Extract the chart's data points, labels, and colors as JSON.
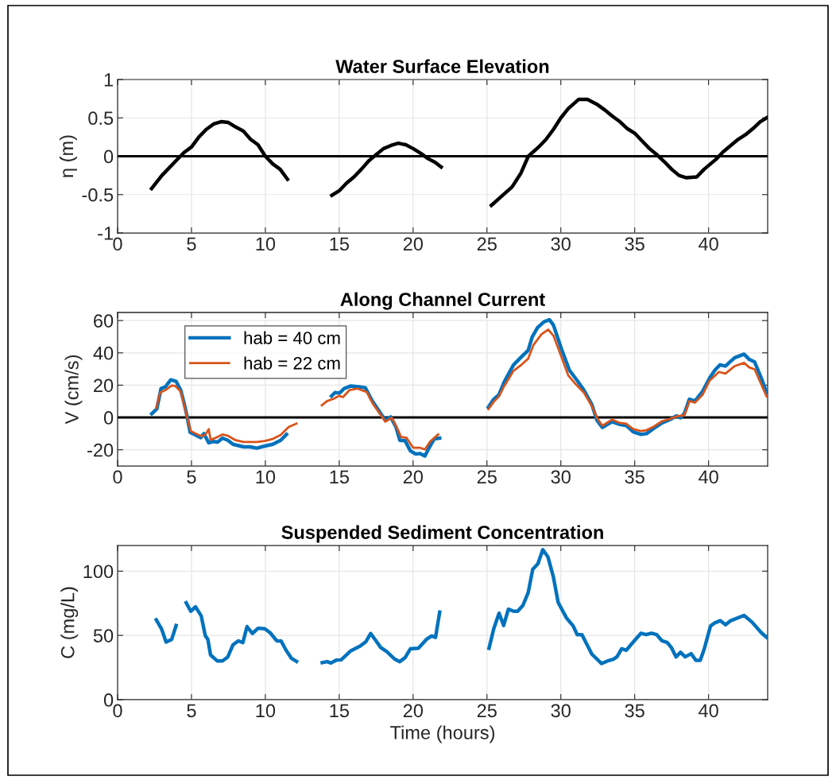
{
  "chart_data": [
    {
      "type": "line",
      "title": "Water Surface Elevation",
      "ylabel": "η (m)",
      "xlim": [
        0,
        44
      ],
      "xticks": [
        0,
        5,
        10,
        15,
        20,
        25,
        30,
        35,
        40
      ],
      "ylim": [
        -1,
        1
      ],
      "yticks": [
        -1,
        -0.5,
        0,
        0.5,
        1
      ],
      "grid": true,
      "legend": false,
      "ref_lines": [
        {
          "axis": "y",
          "value": 0,
          "color": "#000000"
        }
      ],
      "series": [
        {
          "color": "#000000",
          "x": [
            2.3,
            3,
            4,
            4.5,
            5,
            5.5,
            6,
            6.5,
            7,
            7.5,
            8,
            8.5,
            9,
            9.5,
            10,
            10.5,
            11,
            11.5,
            13,
            14.5,
            15,
            15.5,
            16,
            16.5,
            17,
            17.5,
            18,
            18.5,
            19,
            19.5,
            20,
            20.5,
            21,
            21.5,
            21.9,
            23.5,
            25.3,
            26,
            26.7,
            27.3,
            27.8,
            28.5,
            29,
            29.5,
            30,
            30.5,
            31.2,
            31.8,
            32.5,
            33,
            33.5,
            34,
            34.5,
            35,
            35.5,
            36,
            36.5,
            37,
            37.5,
            38,
            38.5,
            39.2,
            39.7,
            40.5,
            41,
            41.5,
            42,
            42.5,
            43,
            43.5,
            44
          ],
          "values": [
            -0.42,
            -0.25,
            -0.05,
            0.05,
            0.12,
            0.25,
            0.35,
            0.42,
            0.45,
            0.44,
            0.38,
            0.33,
            0.22,
            0.15,
            0.0,
            -0.1,
            -0.17,
            -0.3,
            null,
            -0.51,
            -0.45,
            -0.35,
            -0.27,
            -0.17,
            -0.06,
            0.02,
            0.1,
            0.14,
            0.17,
            0.15,
            0.1,
            0.04,
            -0.03,
            -0.08,
            -0.14,
            null,
            -0.64,
            -0.52,
            -0.4,
            -0.22,
            0.0,
            0.12,
            0.22,
            0.35,
            0.5,
            0.62,
            0.74,
            0.74,
            0.67,
            0.6,
            0.52,
            0.45,
            0.36,
            0.3,
            0.2,
            0.1,
            0.02,
            -0.07,
            -0.17,
            -0.25,
            -0.28,
            -0.27,
            -0.17,
            -0.04,
            0.06,
            0.14,
            0.22,
            0.28,
            0.36,
            0.45,
            0.51
          ]
        }
      ]
    },
    {
      "type": "line",
      "title": "Along Channel Current",
      "ylabel": "V (cm/s)",
      "xlim": [
        0,
        44
      ],
      "xticks": [
        0,
        5,
        10,
        15,
        20,
        25,
        30,
        35,
        40
      ],
      "ylim": [
        -30,
        65
      ],
      "yticks": [
        -20,
        0,
        20,
        40,
        60
      ],
      "grid": true,
      "legend": "top left",
      "ref_lines": [
        {
          "axis": "y",
          "value": 0,
          "color": "#000000"
        }
      ],
      "series": [
        {
          "name": "hab = 40 cm",
          "color": "#0072bd",
          "x": [
            2.31,
            2.65,
            2.94,
            3.24,
            3.6,
            3.96,
            4.27,
            4.5,
            4.68,
            4.91,
            5.27,
            5.63,
            5.84,
            6.17,
            6.47,
            6.77,
            7.1,
            7.46,
            7.81,
            8.53,
            8.98,
            9.42,
            9.96,
            10.5,
            11.04,
            11.43,
            13,
            14.48,
            14.71,
            15.02,
            15.34,
            15.79,
            16.33,
            16.77,
            17.22,
            17.67,
            18.12,
            18.48,
            18.84,
            19.1,
            19.46,
            19.82,
            20.18,
            20.45,
            20.8,
            21.07,
            21.43,
            21.8,
            23.5,
            25.1,
            25.46,
            25.81,
            26.17,
            26.8,
            27.33,
            27.79,
            28.06,
            28.42,
            28.87,
            29.23,
            29.5,
            30.04,
            30.58,
            31.11,
            31.56,
            32.1,
            32.45,
            32.81,
            33.47,
            34,
            34.44,
            34.9,
            35.43,
            35.8,
            36.3,
            36.85,
            37.38,
            37.83,
            38.1,
            38.37,
            38.7,
            39.08,
            39.6,
            40.07,
            40.43,
            40.78,
            41.14,
            41.77,
            42.4,
            42.76,
            43.12,
            43.57,
            43.93
          ],
          "values": [
            2.3,
            5.2,
            17.9,
            19,
            23.3,
            22.3,
            17,
            8.9,
            1.5,
            -9.2,
            -10.8,
            -12.5,
            -10,
            -15.7,
            -14.9,
            -15.2,
            -12.8,
            -14.1,
            -16.6,
            -18.2,
            -18.2,
            -19,
            -17.7,
            -16.6,
            -14.1,
            -10.5,
            null,
            13.3,
            15.4,
            15.1,
            17.9,
            19.5,
            19,
            18.4,
            10.5,
            4.3,
            -1.8,
            0.3,
            -5.9,
            -14.1,
            -14.4,
            -20.7,
            -22.6,
            -22.3,
            -23.9,
            -19,
            -13.3,
            -12.8,
            null,
            6.4,
            11.3,
            14.1,
            22,
            32.6,
            37.5,
            41.6,
            49.8,
            55.6,
            59.3,
            60.5,
            57.2,
            42.5,
            29.3,
            22.8,
            17,
            8,
            -1.8,
            -6.2,
            -2.6,
            -4.3,
            -5.1,
            -8.9,
            -10.5,
            -10,
            -6.7,
            -3.4,
            -1.3,
            1,
            -0.2,
            2.6,
            11.3,
            10.2,
            16.2,
            24.4,
            29.3,
            32.6,
            31.8,
            37,
            39.2,
            35.9,
            34.3,
            24.4,
            15.4
          ]
        },
        {
          "name": "hab = 22 cm",
          "color": "#d95319",
          "x": [
            2.61,
            2.88,
            3.24,
            3.66,
            3.9,
            4.27,
            4.68,
            4.95,
            5.3,
            5.66,
            5.93,
            6.17,
            6.29,
            6.65,
            7.1,
            7.46,
            7.99,
            8.53,
            9.42,
            9.96,
            10.5,
            11.04,
            11.58,
            12.11,
            13,
            13.82,
            14.18,
            14.63,
            14.99,
            15.25,
            15.7,
            16.24,
            16.87,
            17.31,
            17.76,
            18.12,
            18.56,
            18.92,
            19.19,
            19.55,
            20,
            20.45,
            20.8,
            21.16,
            21.7,
            23.5,
            25.1,
            25.46,
            25.81,
            26.17,
            26.8,
            27.33,
            27.79,
            28.15,
            28.69,
            29.14,
            29.5,
            30.04,
            30.5,
            31.04,
            31.56,
            32.1,
            32.45,
            32.81,
            33.47,
            34,
            34.44,
            34.9,
            35.43,
            35.8,
            36.3,
            36.85,
            37.38,
            37.83,
            38.37,
            38.7,
            39.08,
            39.6,
            40.07,
            40.7,
            41.14,
            41.77,
            42.4,
            42.76,
            43.12,
            43.93
          ],
          "values": [
            5.9,
            15.4,
            17,
            19.8,
            19.5,
            16.2,
            1,
            -8.4,
            -10,
            -11.6,
            -10.8,
            -7.2,
            -13.8,
            -12.5,
            -10.5,
            -11.3,
            -14.1,
            -15.2,
            -15.2,
            -14.6,
            -13.3,
            -10.8,
            -5.9,
            -3.8,
            null,
            7.5,
            10.2,
            11.6,
            13.4,
            12.6,
            17,
            17.9,
            15.7,
            8,
            2.3,
            -2.6,
            -0.2,
            -6.7,
            -12.1,
            -12.5,
            -18.7,
            -18.7,
            -19.8,
            -14.9,
            -10.5,
            null,
            5.2,
            9.7,
            13,
            19.5,
            28.9,
            32.6,
            36.4,
            44.9,
            51.5,
            54.4,
            50.7,
            37.5,
            26.1,
            20.3,
            15.4,
            7.2,
            -0.2,
            -5.1,
            -1.3,
            -3.4,
            -3.9,
            -7.2,
            -8.4,
            -7.9,
            -5.6,
            -2.3,
            -1,
            0.7,
            1.5,
            10.2,
            9.2,
            14.1,
            22.8,
            28.2,
            27.2,
            31.8,
            33.8,
            31,
            29.8,
            13
          ]
        }
      ]
    },
    {
      "type": "line",
      "title": "Suspended Sediment Concentration",
      "ylabel": "C (mg/L)",
      "xlabel": "Time (hours)",
      "xlim": [
        0,
        44
      ],
      "xticks": [
        0,
        5,
        10,
        15,
        20,
        25,
        30,
        35,
        40
      ],
      "ylim": [
        0,
        120
      ],
      "yticks": [
        0,
        50,
        100
      ],
      "grid": true,
      "legend": false,
      "series": [
        {
          "color": "#0072bd",
          "x": [
            2.62,
            2.97,
            3.28,
            3.66,
            3.96,
            4.3,
            4.64,
            4.95,
            5.27,
            5.66,
            5.93,
            6.11,
            6.29,
            6.74,
            7.1,
            7.46,
            7.81,
            8.17,
            8.48,
            8.76,
            9.12,
            9.51,
            9.96,
            10.32,
            10.77,
            11.07,
            11.4,
            11.76,
            12.11,
            13,
            13.85,
            14.18,
            14.44,
            14.8,
            15.13,
            15.79,
            16.42,
            16.81,
            17.13,
            17.49,
            17.81,
            18.21,
            18.74,
            19.1,
            19.46,
            19.82,
            20.36,
            20.9,
            21.25,
            21.52,
            21.8,
            23.5,
            25.14,
            25.46,
            25.82,
            26.13,
            26.45,
            26.81,
            27.08,
            27.44,
            27.79,
            28.1,
            28.45,
            28.78,
            29.13,
            29.49,
            29.82,
            30.39,
            30.84,
            31.11,
            31.43,
            32.1,
            32.76,
            33.17,
            33.53,
            33.8,
            34.12,
            34.43,
            34.97,
            35.42,
            35.77,
            36.13,
            36.49,
            36.85,
            37.21,
            37.48,
            37.8,
            38.1,
            38.42,
            38.82,
            39.14,
            39.44,
            39.71,
            40.13,
            40.43,
            40.79,
            41.15,
            41.5,
            42.4,
            42.94,
            43.57,
            43.93
          ],
          "values": [
            62.1,
            55.2,
            44.8,
            46.9,
            57.7,
            null,
            75.4,
            68.8,
            72.3,
            65.2,
            50,
            46.9,
            34.8,
            30.2,
            30.2,
            33.3,
            42.7,
            45.8,
            44.4,
            56.9,
            51.5,
            55.6,
            55.2,
            52.1,
            45.8,
            45.6,
            38.5,
            32.3,
            29.8,
            null,
            28.8,
            29.6,
            28.5,
            30.8,
            31,
            38.1,
            41.7,
            45.2,
            51.5,
            45.8,
            40.6,
            37.5,
            31.7,
            29.6,
            32.7,
            39.6,
            40,
            46.9,
            49.6,
            48.5,
            68.1,
            null,
            40,
            55.2,
            67.3,
            57.7,
            70.4,
            68.8,
            68.8,
            73.5,
            83.3,
            101.5,
            105.8,
            116.7,
            111,
            95.8,
            75.6,
            63.5,
            57.3,
            50.6,
            50.6,
            35.4,
            28.1,
            30.2,
            31.3,
            33.3,
            39.6,
            38.5,
            45.8,
            51.7,
            50.6,
            51.7,
            50.6,
            45.8,
            44.4,
            40.6,
            33.3,
            36.9,
            33.3,
            35.8,
            30.6,
            30.6,
            39.6,
            57.3,
            59.8,
            61.5,
            58.3,
            61.5,
            65.6,
            60.4,
            52.1,
            48.5
          ]
        }
      ]
    }
  ]
}
